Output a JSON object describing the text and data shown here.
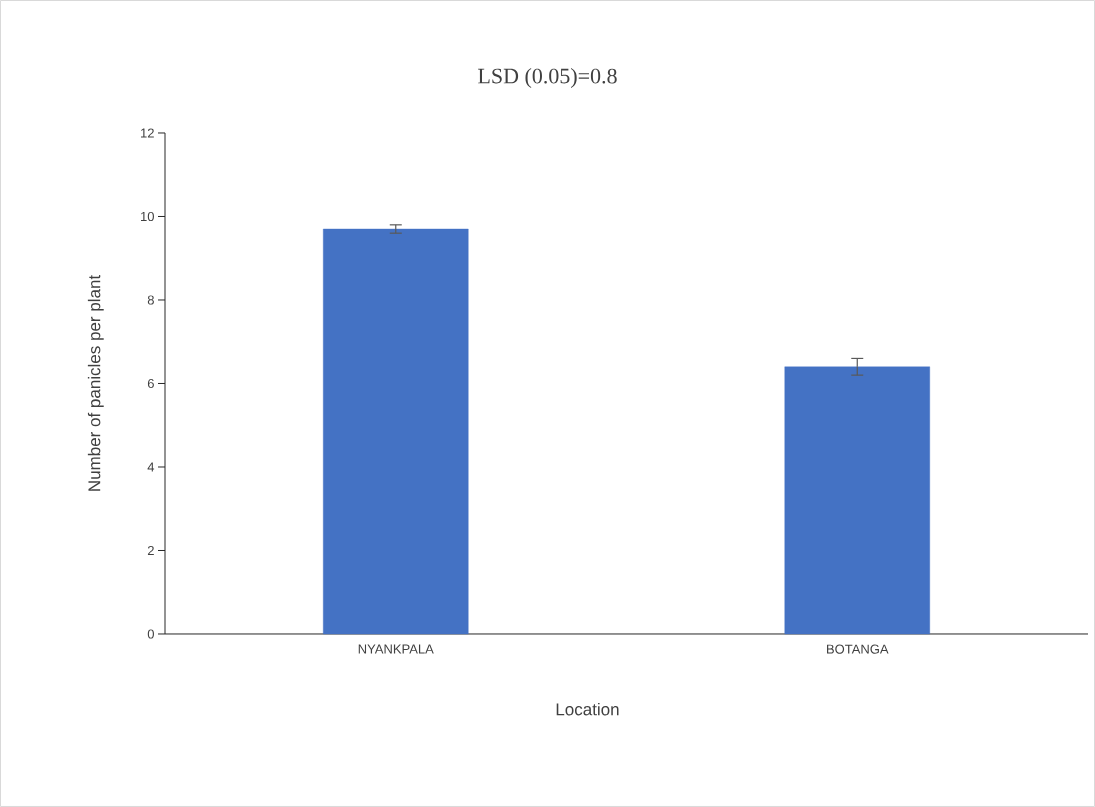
{
  "chart_data": {
    "type": "bar",
    "title": "LSD (0.05)=0.8",
    "xlabel": "Location",
    "ylabel": "Number of panicles per plant",
    "categories": [
      "NYANKPALA",
      "BOTANGA"
    ],
    "values": [
      9.7,
      6.4
    ],
    "errors": [
      0.1,
      0.2
    ],
    "color": "#4472c4",
    "ylim": [
      0,
      12
    ],
    "yticks": [
      0,
      2,
      4,
      6,
      8,
      10,
      12
    ]
  }
}
